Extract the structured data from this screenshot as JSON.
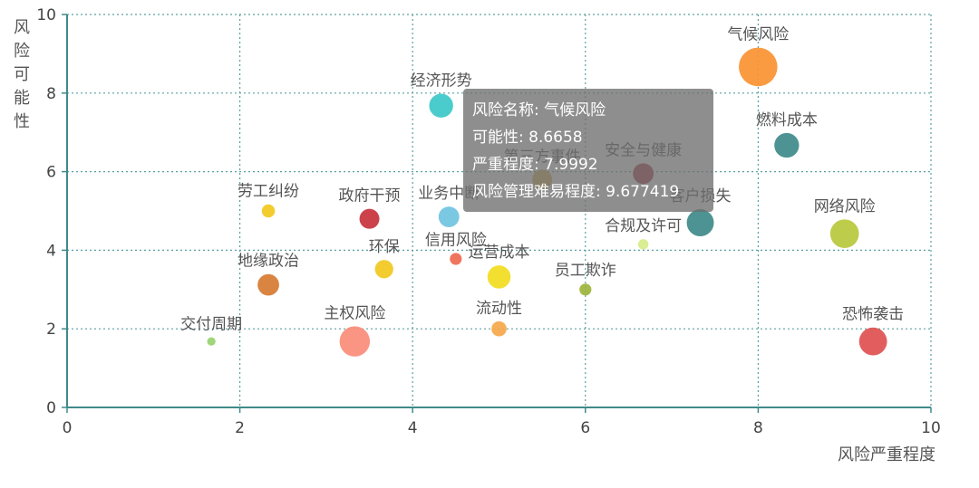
{
  "chart_data": {
    "type": "scatter",
    "title": "",
    "xlabel": "风险严重程度",
    "ylabel": "风险可能性",
    "xlim": [
      0,
      10
    ],
    "ylim": [
      0,
      10
    ],
    "xticks": [
      "0",
      "2",
      "4",
      "6",
      "8",
      "10"
    ],
    "yticks": [
      "0",
      "2",
      "4",
      "6",
      "8",
      "10"
    ],
    "grid": true,
    "points": [
      {
        "name": "气候风险",
        "x": 7.9992,
        "y": 8.6658,
        "size": 9.677419,
        "color": "#fa9232"
      },
      {
        "name": "经济形势",
        "x": 4.33,
        "y": 7.68,
        "size": 6.0,
        "color": "#3cc8c8"
      },
      {
        "name": "燃料成本",
        "x": 8.33,
        "y": 6.67,
        "size": 6.2,
        "color": "#3f8a8a"
      },
      {
        "name": "安全与健康",
        "x": 6.67,
        "y": 5.95,
        "size": 5.2,
        "color": "#aa2a3a"
      },
      {
        "name": "第三方事件",
        "x": 5.5,
        "y": 5.8,
        "size": 5.0,
        "color": "#d7b04a"
      },
      {
        "name": "客户损失",
        "x": 7.33,
        "y": 4.7,
        "size": 6.8,
        "color": "#3f8a8a"
      },
      {
        "name": "业务中断",
        "x": 4.42,
        "y": 4.85,
        "size": 5.2,
        "color": "#70c3e1"
      },
      {
        "name": "政府干预",
        "x": 3.5,
        "y": 4.8,
        "size": 5.0,
        "color": "#c8323c"
      },
      {
        "name": "劳工纠纷",
        "x": 2.33,
        "y": 5.0,
        "size": 3.3,
        "color": "#f2c81e"
      },
      {
        "name": "网络风险",
        "x": 9.0,
        "y": 4.42,
        "size": 7.2,
        "color": "#b9c83c"
      },
      {
        "name": "合规及许可",
        "x": 6.67,
        "y": 4.15,
        "size": 2.6,
        "color": "#d6ec8a"
      },
      {
        "name": "信用风险",
        "x": 4.5,
        "y": 3.78,
        "size": 3.0,
        "color": "#ee6a50"
      },
      {
        "name": "环保",
        "x": 3.67,
        "y": 3.52,
        "size": 4.6,
        "color": "#f2c81e"
      },
      {
        "name": "运营成本",
        "x": 5.0,
        "y": 3.32,
        "size": 5.8,
        "color": "#f2dc1e"
      },
      {
        "name": "地缘政治",
        "x": 2.33,
        "y": 3.12,
        "size": 5.4,
        "color": "#d77a32"
      },
      {
        "name": "员工欺诈",
        "x": 6.0,
        "y": 3.0,
        "size": 3.0,
        "color": "#9cb43c"
      },
      {
        "name": "流动性",
        "x": 5.0,
        "y": 2.0,
        "size": 3.8,
        "color": "#f5a84a"
      },
      {
        "name": "主权风险",
        "x": 3.33,
        "y": 1.68,
        "size": 7.6,
        "color": "#fa8c78"
      },
      {
        "name": "交付周期",
        "x": 1.67,
        "y": 1.68,
        "size": 2.1,
        "color": "#96d26e"
      },
      {
        "name": "恐怖袭击",
        "x": 9.33,
        "y": 1.68,
        "size": 7.0,
        "color": "#e05050"
      }
    ]
  },
  "tooltip": {
    "line_name": "风险名称: 气候风险",
    "line_likelihood": "可能性: 8.6658",
    "line_severity": "严重程度: 7.9992",
    "line_difficulty": "风险管理难易程度: 9.677419"
  }
}
